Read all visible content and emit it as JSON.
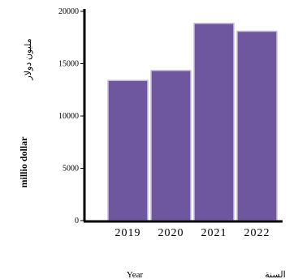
{
  "chart_data": {
    "type": "bar",
    "categories": [
      "2019",
      "2020",
      "2021",
      "2022"
    ],
    "values": [
      13400,
      14350,
      18850,
      18100
    ],
    "ylim": [
      0,
      20000
    ],
    "yticks": [
      0,
      5000,
      10000,
      15000,
      20000
    ],
    "ylabel_bold": "millio dollar",
    "ylabel_ar": "مليون دولار",
    "xlabel": "Year",
    "xlabel_ar": "السنة",
    "grid": false,
    "colors": {
      "bar": "#6f57a0",
      "bar_edge": "#c9bfe0",
      "axis": "#000000"
    }
  }
}
